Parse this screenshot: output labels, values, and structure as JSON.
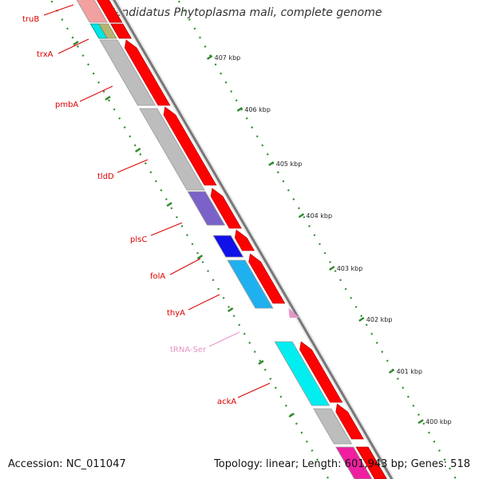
{
  "title": "Candidatus Phytoplasma mali, complete genome",
  "footer": {
    "accession": "Accession: NC_011047",
    "summary": "Topology: linear; Length: 601,943 bp; Genes: 518"
  },
  "colors": {
    "gene_label": "#dd0000",
    "trna_label": "#e695c8",
    "tick": "#2f8a2f",
    "backbone": "#777777",
    "red_gene": "#ff0000",
    "gray_gene": "#bbbbbb"
  },
  "ticks": [
    {
      "label": "407 kbp"
    },
    {
      "label": "406 kbp"
    },
    {
      "label": "405 kbp"
    },
    {
      "label": "404 kbp"
    },
    {
      "label": "403 kbp"
    },
    {
      "label": "402 kbp"
    },
    {
      "label": "401 kbp"
    },
    {
      "label": "400 kbp"
    }
  ],
  "genes": [
    {
      "name": "truB",
      "type": "gene"
    },
    {
      "name": "trxA",
      "type": "gene"
    },
    {
      "name": "pmbA",
      "type": "gene"
    },
    {
      "name": "tldD",
      "type": "gene"
    },
    {
      "name": "plsC",
      "type": "gene"
    },
    {
      "name": "folA",
      "type": "gene"
    },
    {
      "name": "thyA",
      "type": "gene"
    },
    {
      "name": "tRNA-Ser",
      "type": "trna"
    },
    {
      "name": "ackA",
      "type": "gene"
    }
  ]
}
